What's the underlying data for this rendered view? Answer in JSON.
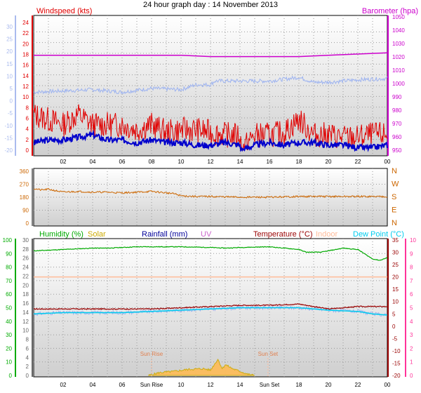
{
  "title": "24 hour graph day : 14 November 2013",
  "colors": {
    "wind": "#e00000",
    "gust_axis": "#aabbee",
    "windavg": "#0000cc",
    "windavg_bg": "#9db3f0",
    "baro": "#cc00cc",
    "dir": "#cc6600",
    "dir_axis": "#cc6600",
    "humidity": "#00aa00",
    "solar": "#ccaa00",
    "rain": "#000099",
    "uv": "#cc66cc",
    "temp": "#990000",
    "indoor": "#ffbb99",
    "dew": "#00ccee",
    "temp_axis_right": "#ff3399",
    "rain_axis": "#666666"
  },
  "x_ticks": [
    "02",
    "04",
    "06",
    "08",
    "10",
    "12",
    "14",
    "16",
    "18",
    "20",
    "22",
    "00"
  ],
  "x_ticks_bottom": [
    "02",
    "04",
    "06",
    "Sun Rise",
    "10",
    "12",
    "14",
    "Sun Set",
    "18",
    "20",
    "22",
    "00"
  ],
  "chart_data": [
    {
      "type": "line",
      "panel": "wind-baro",
      "left_label": "Windspeed (kts)",
      "right_label": "Barometer (hpa)",
      "y_left_ticks": [
        "24",
        "22",
        "20",
        "18",
        "16",
        "14",
        "12",
        "10",
        "8",
        "6",
        "4",
        "2",
        "0"
      ],
      "y_outer_ticks": [
        "30",
        "25",
        "20",
        "15",
        "10",
        "5",
        "0",
        "-5",
        "-10",
        "-15",
        "-20"
      ],
      "y_right_ticks": [
        "1050",
        "1040",
        "1030",
        "1020",
        "1010",
        "1000",
        "990",
        "980",
        "970",
        "960",
        "950"
      ],
      "ylim_left": [
        0,
        25
      ],
      "ylim_outer": [
        -20,
        30
      ],
      "ylim_right": [
        948,
        1052
      ],
      "series": [
        {
          "series": "barometer",
          "axis": "right",
          "x": [
            0,
            2,
            4,
            6,
            8,
            10,
            12,
            14,
            16,
            18,
            20,
            22,
            24
          ],
          "y": [
            1022,
            1022,
            1022,
            1022,
            1022,
            1022,
            1021,
            1021,
            1021,
            1021,
            1022,
            1023,
            1024
          ]
        },
        {
          "series": "outer-blue",
          "axis": "outer",
          "x": [
            0,
            2,
            4,
            6,
            8,
            10,
            11,
            12,
            12.3,
            14,
            16,
            18,
            19,
            20,
            22,
            24
          ],
          "y": [
            3.5,
            4,
            4.5,
            3.5,
            5,
            4.5,
            6.5,
            6.5,
            8,
            8,
            8,
            9.5,
            7.5,
            7.5,
            8.5,
            9
          ]
        },
        {
          "series": "wind-avg",
          "axis": "left",
          "x": [
            0,
            1,
            2,
            3,
            4,
            5,
            6,
            7,
            8,
            9,
            10,
            11,
            12,
            13,
            14,
            14.1,
            15,
            16,
            17,
            18,
            19,
            20,
            21,
            22,
            23,
            24
          ],
          "y": [
            1.5,
            2,
            2,
            2.5,
            3,
            2,
            2,
            1.5,
            2,
            1.5,
            1.5,
            1,
            1,
            1.5,
            1,
            0,
            1,
            1.5,
            1,
            1.5,
            1.5,
            1,
            1,
            0.5,
            0.5,
            1
          ]
        },
        {
          "series": "wind-gust",
          "axis": "left",
          "x": [
            0,
            1,
            2,
            3,
            4,
            5,
            6,
            7,
            8,
            9,
            10,
            11,
            12,
            13,
            14,
            14.1,
            15,
            16,
            17,
            18,
            19,
            20,
            21,
            22,
            23,
            24
          ],
          "y": [
            7,
            6,
            5,
            7,
            5,
            5,
            5,
            4,
            5,
            3.5,
            4,
            4,
            3.5,
            3,
            3,
            0,
            3,
            3,
            3.5,
            6,
            3,
            3,
            2.5,
            2.5,
            3,
            3
          ]
        }
      ]
    },
    {
      "type": "line",
      "panel": "wind-direction",
      "y_left_ticks": [
        "360",
        "270",
        "180",
        "90",
        "0"
      ],
      "y_right_ticks": [
        "N",
        "W",
        "S",
        "E",
        "N"
      ],
      "ylim": [
        0,
        360
      ],
      "series": [
        {
          "series": "direction",
          "x": [
            0,
            0.5,
            1,
            2,
            3,
            4,
            5,
            6,
            7,
            8,
            9,
            9.5,
            10,
            11,
            12,
            14,
            16,
            18,
            20,
            22,
            24
          ],
          "y": [
            240,
            230,
            235,
            215,
            220,
            215,
            215,
            210,
            215,
            220,
            210,
            205,
            190,
            185,
            185,
            180,
            180,
            185,
            185,
            185,
            185
          ]
        }
      ]
    },
    {
      "type": "line",
      "panel": "temp-humidity",
      "labels": [
        "Humidity (%)",
        "Solar",
        "Rainfall (mm)",
        "UV",
        "Temperature (°C)",
        "Indoor",
        "Dew Point (°C)"
      ],
      "sun_rise_label": "Sun Rise",
      "sun_set_label": "Sun Set",
      "y_humidity_ticks": [
        "100",
        "90",
        "80",
        "70",
        "60",
        "50",
        "40",
        "30",
        "20",
        "10",
        "0"
      ],
      "y_rain_ticks": [
        "30",
        "28",
        "26",
        "24",
        "22",
        "20",
        "18",
        "16",
        "14",
        "12",
        "10",
        "8",
        "6",
        "4",
        "2",
        "0"
      ],
      "y_temp_ticks": [
        "35",
        "30",
        "25",
        "20",
        "15",
        "10",
        "5",
        "0",
        "-5",
        "-10",
        "-15",
        "-20"
      ],
      "y_uv_ticks": [
        "10",
        "9",
        "8",
        "7",
        "6",
        "5",
        "4",
        "3",
        "2",
        "1",
        "0"
      ],
      "ylim_humidity": [
        0,
        100
      ],
      "ylim_temp": [
        -20,
        35
      ],
      "series": [
        {
          "series": "humidity",
          "axis": "humidity",
          "x": [
            0,
            2,
            4,
            5,
            6,
            7,
            8,
            10,
            12,
            13,
            14,
            16,
            17,
            18,
            18.5,
            19.5,
            20,
            21,
            22,
            23,
            23.5,
            24
          ],
          "y": [
            92,
            93,
            94,
            94,
            94.5,
            95,
            95,
            95,
            94.5,
            94,
            94.5,
            95,
            94,
            93,
            91,
            91,
            92,
            94,
            93,
            86,
            85,
            87
          ]
        },
        {
          "series": "indoor",
          "axis": "temp",
          "x": [
            0,
            4,
            8,
            12,
            16,
            20,
            24
          ],
          "y": [
            20,
            20,
            20,
            20,
            20,
            20,
            20
          ]
        },
        {
          "series": "temperature",
          "axis": "temp",
          "x": [
            0,
            2,
            4,
            6,
            8,
            10,
            12,
            14,
            16,
            18,
            19,
            20,
            22,
            24
          ],
          "y": [
            7,
            7,
            7,
            7,
            7,
            7.5,
            8,
            8.5,
            8.5,
            9,
            8,
            7,
            8,
            8
          ]
        },
        {
          "series": "dew-point",
          "axis": "temp",
          "x": [
            0,
            2,
            4,
            6,
            8,
            10,
            12,
            14,
            16,
            18,
            19,
            20,
            22,
            23,
            24
          ],
          "y": [
            5,
            5.5,
            5.5,
            5.5,
            6,
            6.5,
            7,
            7.5,
            7.5,
            7.5,
            7,
            6.5,
            6,
            5,
            4.5
          ]
        },
        {
          "series": "solar",
          "axis": "humidity",
          "x": [
            7.8,
            8.5,
            9.5,
            10.5,
            11.5,
            12,
            12.5,
            12.8,
            13,
            13.5,
            14,
            14.5,
            15
          ],
          "y": [
            0,
            2,
            3,
            4.5,
            5,
            4,
            12,
            5,
            8,
            5,
            3,
            1,
            0
          ]
        }
      ]
    }
  ]
}
